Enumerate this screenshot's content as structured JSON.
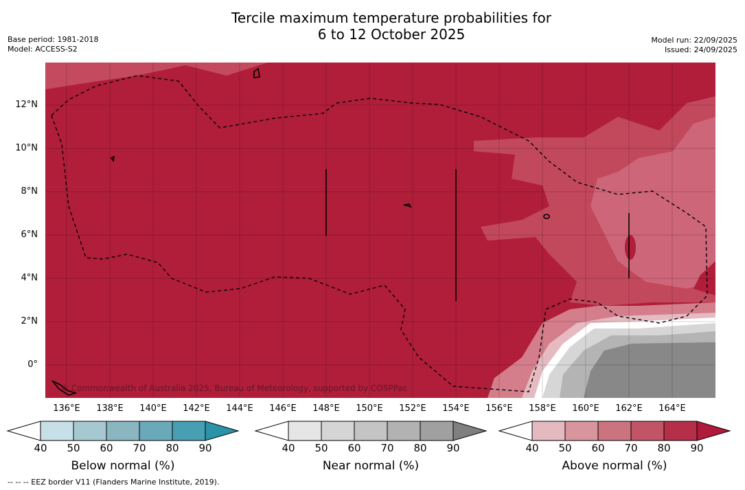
{
  "title_line1": "Tercile maximum temperature probabilities for",
  "title_line2": "6 to 12 October 2025",
  "base_period": "Base period: 1981-2018",
  "model": "Model: ACCESS-S2",
  "model_run": "Model run: 22/09/2025",
  "issued": "Issued: 24/09/2025",
  "lat_labels": [
    "12°N",
    "10°N",
    "8°N",
    "6°N",
    "4°N",
    "2°N",
    "0°"
  ],
  "lon_labels": [
    "136°E",
    "138°E",
    "140°E",
    "142°E",
    "144°E",
    "146°E",
    "148°E",
    "150°E",
    "152°E",
    "154°E",
    "156°E",
    "158°E",
    "160°E",
    "162°E",
    "164°E"
  ],
  "copyright": "© Commonwealth of Australia 2025, Bureau of Meteorology, supported by COSPPac",
  "colorbars": [
    {
      "label": "Below normal (%)",
      "ticks": [
        "40",
        "50",
        "60",
        "70",
        "80",
        "90"
      ],
      "colors": [
        "#ffffff",
        "#c7e0e7",
        "#a6c9d1",
        "#8ab6c2",
        "#6aa9b9",
        "#489fb1",
        "#2a93a8"
      ]
    },
    {
      "label": "Near normal (%)",
      "ticks": [
        "40",
        "50",
        "60",
        "70",
        "80",
        "90"
      ],
      "colors": [
        "#ffffff",
        "#e6e6e6",
        "#d5d5d5",
        "#c4c4c4",
        "#b2b2b2",
        "#a0a0a0",
        "#7f7f7f"
      ]
    },
    {
      "label": "Above normal (%)",
      "ticks": [
        "40",
        "50",
        "60",
        "70",
        "80",
        "90"
      ],
      "colors": [
        "#ffffff",
        "#e4b9c0",
        "#d8959e",
        "#cc7380",
        "#c15565",
        "#b52f48",
        "#b01a3b"
      ]
    }
  ],
  "footnote": "--  --  -- EEZ border V11 (Flanders Marine Institute, 2019)."
}
